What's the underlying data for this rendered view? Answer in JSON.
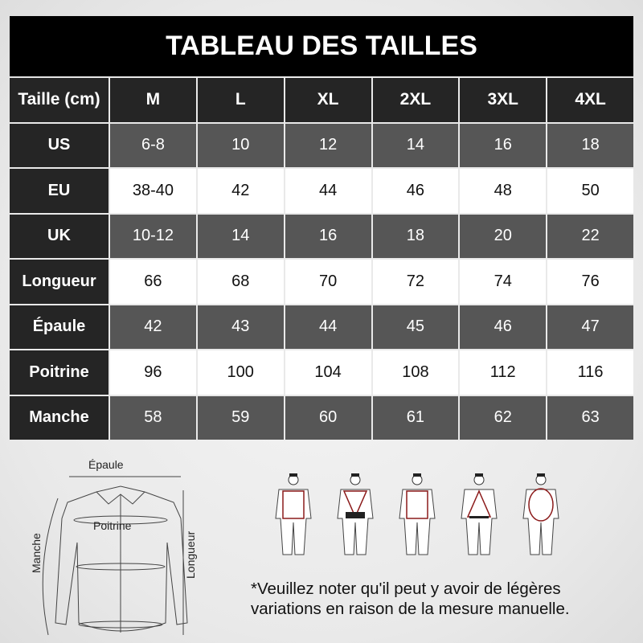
{
  "title": "TABLEAU DES TAILLES",
  "table": {
    "header": [
      "Taille (cm)",
      "M",
      "L",
      "XL",
      "2XL",
      "3XL",
      "4XL"
    ],
    "rows": [
      {
        "label": "US",
        "values": [
          "6-8",
          "10",
          "12",
          "14",
          "16",
          "18"
        ]
      },
      {
        "label": "EU",
        "values": [
          "38-40",
          "42",
          "44",
          "46",
          "48",
          "50"
        ]
      },
      {
        "label": "UK",
        "values": [
          "10-12",
          "14",
          "16",
          "18",
          "20",
          "22"
        ]
      },
      {
        "label": "Longueur",
        "values": [
          "66",
          "68",
          "70",
          "72",
          "74",
          "76"
        ]
      },
      {
        "label": "Épaule",
        "values": [
          "42",
          "43",
          "44",
          "45",
          "46",
          "47"
        ]
      },
      {
        "label": "Poitrine",
        "values": [
          "96",
          "100",
          "104",
          "108",
          "112",
          "116"
        ]
      },
      {
        "label": "Manche",
        "values": [
          "58",
          "59",
          "60",
          "61",
          "62",
          "63"
        ]
      }
    ]
  },
  "diagram": {
    "shoulder": "Épaule",
    "chest": "Poitrine",
    "sleeve": "Manche",
    "length": "Longueur"
  },
  "note": [
    "*Veuillez noter qu'il peut y avoir de légères",
    "variations en raison de la mesure manuelle."
  ],
  "colors": {
    "header": "#252525",
    "gray_row": "#565656",
    "measure_line": "#8b1a1a"
  }
}
